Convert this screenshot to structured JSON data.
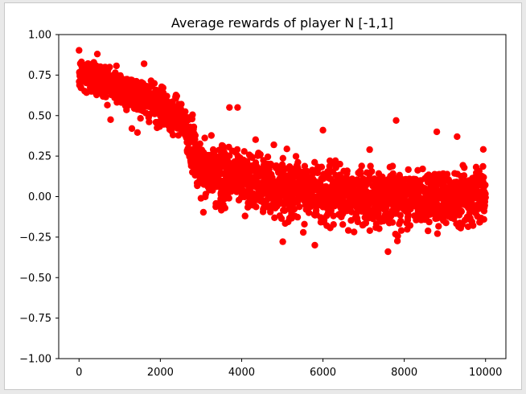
{
  "chart_data": {
    "type": "scatter",
    "title": "Average rewards of player N [-1,1]",
    "xlabel": "",
    "ylabel": "",
    "xlim": [
      -500,
      10500
    ],
    "ylim": [
      -1.0,
      1.0
    ],
    "xticks": [
      0,
      2000,
      4000,
      6000,
      8000,
      10000
    ],
    "xtick_labels": [
      "0",
      "2000",
      "4000",
      "6000",
      "8000",
      "10000"
    ],
    "yticks": [
      1.0,
      0.75,
      0.5,
      0.25,
      0.0,
      -0.25,
      -0.5,
      -0.75,
      -1.0
    ],
    "ytick_labels": [
      "1.00",
      "0.75",
      "0.50",
      "0.25",
      "0.00",
      "−0.25",
      "−0.50",
      "−0.75",
      "−1.00"
    ],
    "grid": false,
    "legend": "none",
    "marker_color": "#ff0000",
    "trend": [
      {
        "x": 0,
        "y": 0.75
      },
      {
        "x": 500,
        "y": 0.73
      },
      {
        "x": 1000,
        "y": 0.67
      },
      {
        "x": 1500,
        "y": 0.62
      },
      {
        "x": 2000,
        "y": 0.55
      },
      {
        "x": 2500,
        "y": 0.5
      },
      {
        "x": 2800,
        "y": 0.3
      },
      {
        "x": 3000,
        "y": 0.15
      },
      {
        "x": 3500,
        "y": 0.13
      },
      {
        "x": 4000,
        "y": 0.12
      },
      {
        "x": 5000,
        "y": 0.05
      },
      {
        "x": 6000,
        "y": 0.02
      },
      {
        "x": 7000,
        "y": 0.0
      },
      {
        "x": 8000,
        "y": -0.01
      },
      {
        "x": 9000,
        "y": 0.0
      },
      {
        "x": 10000,
        "y": 0.02
      }
    ],
    "outliers": [
      {
        "x": 450,
        "y": 0.88
      },
      {
        "x": 1300,
        "y": 0.42
      },
      {
        "x": 1600,
        "y": 0.82
      },
      {
        "x": 3700,
        "y": 0.55
      },
      {
        "x": 3900,
        "y": 0.55
      },
      {
        "x": 6000,
        "y": 0.41
      },
      {
        "x": 7800,
        "y": 0.47
      },
      {
        "x": 5800,
        "y": -0.3
      },
      {
        "x": 7600,
        "y": -0.34
      },
      {
        "x": 8800,
        "y": 0.4
      },
      {
        "x": 9300,
        "y": 0.37
      }
    ]
  }
}
